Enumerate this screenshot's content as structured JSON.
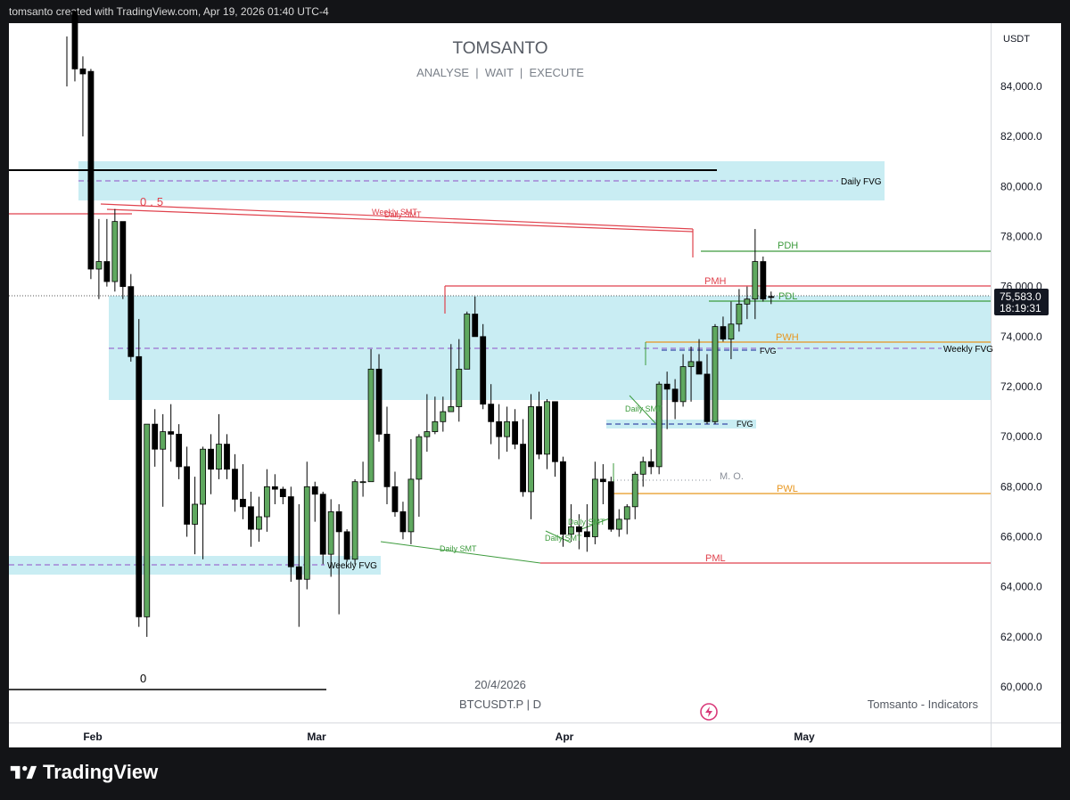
{
  "header": {
    "credit": "tomsanto created with TradingView.com, Apr 19, 2026 01:40 UTC-4"
  },
  "footer": {
    "brand": "TradingView"
  },
  "chart_data": {
    "type": "candlestick",
    "title": "TOMSANTO",
    "subtitle": "ANALYSE  |  WAIT  |  EXECUTE",
    "date_caption": "20/4/2026",
    "symbol": "BTCUSDT.P | D",
    "watermark": "Tomsanto - Indicators",
    "currency": "USDT",
    "x_axis_labels": [
      "Feb",
      "Mar",
      "Apr",
      "May"
    ],
    "y_ticks": [
      "84,000.0",
      "82,000.0",
      "80,000.0",
      "78,000.0",
      "76,000.0",
      "74,000.0",
      "72,000.0",
      "70,000.0",
      "68,000.0",
      "66,000.0",
      "64,000.0",
      "62,000.0",
      "60,000.0"
    ],
    "ylim": [
      59500,
      86500
    ],
    "last_price": "75,583.0",
    "countdown": "18:19:31",
    "colors": {
      "up": "#5fa85f",
      "down": "#000000",
      "zone": "#c9edf3",
      "red": "#e0424d",
      "green": "#3d9b3d",
      "orange": "#e8961e",
      "purple": "#9c6fd0"
    },
    "first_date": "2026-01-19",
    "candles": [
      [
        "2026-01-19",
        null,
        86000,
        84000,
        null
      ],
      [
        "2026-01-20",
        87000,
        87000,
        84200,
        84700
      ],
      [
        "2026-01-21",
        84700,
        85200,
        82000,
        84500
      ],
      [
        "2026-01-22",
        84600,
        84700,
        76300,
        76700
      ],
      [
        "2026-01-23",
        76700,
        78700,
        75500,
        77000
      ],
      [
        "2026-01-24",
        77000,
        78700,
        76000,
        76200
      ],
      [
        "2026-01-25",
        76200,
        79100,
        75800,
        78600
      ],
      [
        "2026-01-26",
        78600,
        78600,
        75500,
        76000
      ],
      [
        "2026-01-27",
        76000,
        76500,
        73000,
        73200
      ],
      [
        "2026-01-28",
        73200,
        74700,
        62400,
        62800
      ],
      [
        "2026-01-29",
        62800,
        70500,
        62000,
        70500
      ],
      [
        "2026-01-30",
        70500,
        71100,
        68800,
        69500
      ],
      [
        "2026-01-31",
        69500,
        70900,
        67200,
        70200
      ],
      [
        "2026-02-01",
        70200,
        71300,
        69000,
        70100
      ],
      [
        "2026-02-02",
        70100,
        70500,
        68300,
        68800
      ],
      [
        "2026-02-03",
        68800,
        69600,
        66000,
        66500
      ],
      [
        "2026-02-04",
        66500,
        68400,
        65300,
        67300
      ],
      [
        "2026-02-05",
        67300,
        69600,
        65100,
        69500
      ],
      [
        "2026-02-06",
        69500,
        70100,
        67700,
        68700
      ],
      [
        "2026-02-07",
        68700,
        70900,
        68300,
        69700
      ],
      [
        "2026-02-08",
        69700,
        70100,
        68300,
        68700
      ],
      [
        "2026-02-09",
        68700,
        69300,
        67000,
        67500
      ],
      [
        "2026-02-10",
        67500,
        68900,
        66700,
        67200
      ],
      [
        "2026-02-11",
        67200,
        67800,
        65600,
        66300
      ],
      [
        "2026-02-12",
        66300,
        67600,
        65800,
        66800
      ],
      [
        "2026-02-13",
        66800,
        68700,
        66200,
        68000
      ],
      [
        "2026-02-14",
        68000,
        68500,
        67300,
        67900
      ],
      [
        "2026-02-15",
        67900,
        68000,
        67300,
        67600
      ],
      [
        "2026-02-16",
        67600,
        68000,
        64200,
        64800
      ],
      [
        "2026-02-17",
        64800,
        67300,
        62400,
        64300
      ],
      [
        "2026-02-18",
        64300,
        69000,
        63900,
        68000
      ],
      [
        "2026-02-19",
        68000,
        68200,
        66600,
        67700
      ],
      [
        "2026-02-20",
        67700,
        67800,
        64900,
        65300
      ],
      [
        "2026-02-21",
        65300,
        67500,
        64400,
        67000
      ],
      [
        "2026-02-22",
        67000,
        67300,
        62900,
        66200
      ],
      [
        "2026-02-23",
        66200,
        66300,
        65000,
        65100
      ],
      [
        "2026-02-24",
        65100,
        68300,
        64900,
        68200
      ],
      [
        "2026-02-25",
        68200,
        69000,
        67600,
        68200
      ],
      [
        "2026-02-26",
        68200,
        73500,
        68200,
        72700
      ],
      [
        "2026-02-27",
        72700,
        73300,
        69800,
        70100
      ],
      [
        "2026-02-28",
        70100,
        71200,
        67300,
        68000
      ],
      [
        "2026-03-01",
        68000,
        68600,
        66800,
        67000
      ],
      [
        "2026-03-02",
        67000,
        67400,
        65900,
        66200
      ],
      [
        "2026-03-03",
        66200,
        69900,
        65700,
        68300
      ],
      [
        "2026-03-04",
        68300,
        70100,
        66800,
        70000
      ],
      [
        "2026-03-05",
        70000,
        71700,
        69400,
        70200
      ],
      [
        "2026-03-06",
        70200,
        71600,
        70100,
        70600
      ],
      [
        "2026-03-07",
        70600,
        71600,
        70200,
        71000
      ],
      [
        "2026-03-08",
        71000,
        73700,
        71000,
        71200
      ],
      [
        "2026-03-09",
        71200,
        73900,
        70600,
        72700
      ],
      [
        "2026-03-10",
        72700,
        75000,
        72700,
        74900
      ],
      [
        "2026-03-11",
        74900,
        75600,
        74500,
        74000
      ],
      [
        "2026-03-12",
        74000,
        74500,
        71100,
        71300
      ],
      [
        "2026-03-13",
        71300,
        72100,
        69700,
        70600
      ],
      [
        "2026-03-14",
        70600,
        71300,
        69100,
        70000
      ],
      [
        "2026-03-15",
        70000,
        71200,
        69400,
        70600
      ],
      [
        "2026-03-16",
        70600,
        71100,
        69500,
        69700
      ],
      [
        "2026-03-17",
        69700,
        70700,
        67600,
        67800
      ],
      [
        "2026-03-18",
        67800,
        71700,
        66700,
        71200
      ],
      [
        "2026-03-19",
        71200,
        71800,
        69100,
        69300
      ],
      [
        "2026-03-20",
        69300,
        71500,
        68700,
        71400
      ],
      [
        "2026-03-21",
        71400,
        71400,
        68400,
        69000
      ],
      [
        "2026-03-22",
        69000,
        69200,
        65600,
        66100
      ],
      [
        "2026-03-23",
        66100,
        67300,
        65800,
        66400
      ],
      [
        "2026-03-24",
        66400,
        66900,
        65500,
        66200
      ],
      [
        "2026-03-25",
        66200,
        67300,
        65400,
        66000
      ],
      [
        "2026-03-26",
        66000,
        69000,
        65700,
        68300
      ],
      [
        "2026-03-27",
        68300,
        68900,
        67300,
        68200
      ],
      [
        "2026-03-28",
        68200,
        68400,
        66200,
        66300
      ],
      [
        "2026-03-29",
        66300,
        67100,
        66000,
        66700
      ],
      [
        "2026-03-30",
        66700,
        67300,
        66100,
        67200
      ],
      [
        "2026-03-31",
        67200,
        68600,
        66700,
        68500
      ],
      [
        "2026-04-01",
        68500,
        69200,
        68000,
        69000
      ],
      [
        "2026-04-02",
        69000,
        69500,
        68500,
        68800
      ],
      [
        "2026-04-03",
        68800,
        72200,
        68500,
        72100
      ],
      [
        "2026-04-04",
        72100,
        72600,
        70300,
        71900
      ],
      [
        "2026-04-05",
        71900,
        72300,
        70700,
        71400
      ],
      [
        "2026-04-06",
        71400,
        73300,
        71200,
        72800
      ],
      [
        "2026-04-07",
        72800,
        73600,
        71400,
        73000
      ],
      [
        "2026-04-08",
        73000,
        73900,
        72500,
        72500
      ],
      [
        "2026-04-09",
        72500,
        73300,
        70500,
        70600
      ],
      [
        "2026-04-10",
        70600,
        74500,
        70500,
        74400
      ],
      [
        "2026-04-11",
        74400,
        74800,
        73800,
        73900
      ],
      [
        "2026-04-12",
        73900,
        75400,
        73100,
        74500
      ],
      [
        "2026-04-13",
        74500,
        75900,
        74200,
        75300
      ],
      [
        "2026-04-14",
        75300,
        76000,
        74700,
        75500
      ],
      [
        "2026-04-15",
        75500,
        78300,
        74700,
        77000
      ],
      [
        "2026-04-16",
        77000,
        77200,
        75400,
        75500
      ],
      [
        "2026-04-17",
        75600,
        75800,
        75300,
        75583
      ]
    ],
    "annotations": [
      {
        "label": "Daily FVG",
        "color": "#000000",
        "y": 80200
      },
      {
        "label": "Weekly FVG",
        "color": "#000000",
        "y": 73500
      },
      {
        "label": "Weekly FVG",
        "color": "#000000",
        "y": 64900
      },
      {
        "label": "FVG",
        "color": "#000000",
        "y": 73400
      },
      {
        "label": "FVG",
        "color": "#000000",
        "y": 70500
      },
      {
        "label": "PDH",
        "color": "#3d9b3d",
        "y": 77400
      },
      {
        "label": "PMH",
        "color": "#e0424d",
        "y": 76000
      },
      {
        "label": "PDL",
        "color": "#3d9b3d",
        "y": 75500
      },
      {
        "label": "PWH",
        "color": "#e8961e",
        "y": 73800
      },
      {
        "label": "M. O.",
        "color": "#8a8f99",
        "y": 68300
      },
      {
        "label": "PWL",
        "color": "#e8961e",
        "y": 67700
      },
      {
        "label": "PML",
        "color": "#e0424d",
        "y": 64900
      },
      {
        "label": "0.5",
        "color": "#e0424d",
        "y": 79000
      },
      {
        "label": "0",
        "color": "#000000",
        "y": 59900
      },
      {
        "label": "Weekly SMT",
        "color": "#e0424d",
        "y": 78800
      },
      {
        "label": "Daily SMT",
        "color": "#e0424d",
        "y": 78800
      },
      {
        "label": "Daily SMT",
        "color": "#3d9b3d",
        "y": 65700
      },
      {
        "label": "Daily SMT",
        "color": "#3d9b3d",
        "y": 66600
      },
      {
        "label": "Daily SMT",
        "color": "#3d9b3d",
        "y": 66100
      },
      {
        "label": "Daily SMT",
        "color": "#3d9b3d",
        "y": 70800
      }
    ]
  }
}
